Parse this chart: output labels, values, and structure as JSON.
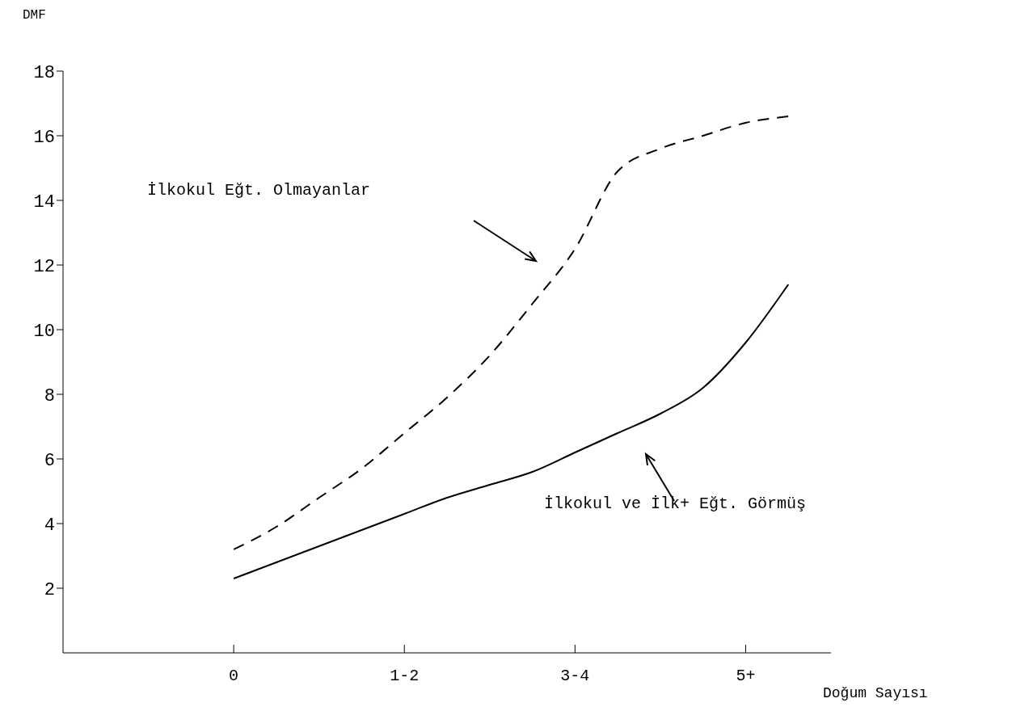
{
  "chart_data": {
    "type": "line",
    "ylabel": "DMF",
    "xlabel": "Doğum Sayısı",
    "categories": [
      null,
      null,
      null,
      null,
      "0",
      null,
      null,
      null,
      "1-2",
      null,
      null,
      null,
      "3-4",
      null,
      null,
      null,
      "5+",
      null,
      null
    ],
    "ylim": [
      0,
      18
    ],
    "yticks": [
      2,
      4,
      6,
      8,
      10,
      12,
      14,
      16,
      18
    ],
    "marker": "none",
    "series": [
      {
        "color": "#000000",
        "line_style": "dashed",
        "values": [
          null,
          null,
          null,
          null,
          3.2,
          3.9,
          4.8,
          5.7,
          6.8,
          7.9,
          9.2,
          10.8,
          12.5,
          14.9,
          15.6,
          16,
          16.4,
          16.6,
          null
        ]
      },
      {
        "color": "#000000",
        "line_style": "solid",
        "values": [
          null,
          null,
          null,
          null,
          2.3,
          2.8,
          3.3,
          3.8,
          4.3,
          4.8,
          5.2,
          5.6,
          6.2,
          6.8,
          7.4,
          8.2,
          9.6,
          11.4,
          null
        ]
      }
    ],
    "annotations": [
      "İlkokul Eğt. Olmayanlar",
      "İlkokul ve İlk+ Eğt. Görmüş"
    ]
  }
}
